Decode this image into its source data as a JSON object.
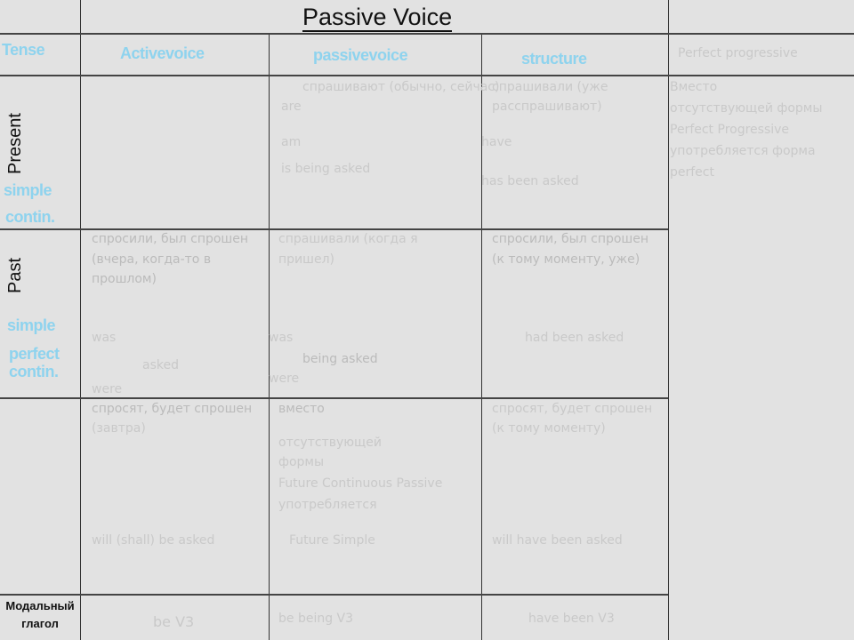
{
  "title": "Passive Voice",
  "header": {
    "tense": "Tense",
    "active": "Activevoice",
    "passive": "passivevoice",
    "structure": "structure",
    "last": "Perfect progressive"
  },
  "rows": {
    "present": {
      "label": "Present",
      "tags": [
        "simple",
        "contin."
      ],
      "passive": [
        "спрашивают (обычно, сейчас)",
        "are",
        "am",
        "is    being asked"
      ],
      "structure": [
        "спрашивали (уже",
        "расспрашивают)",
        "have",
        "has    been asked"
      ],
      "last": [
        "Вместо",
        "отсутствующей формы",
        "Perfect Progressive",
        "употребляется форма",
        "perfect"
      ]
    },
    "past": {
      "label": "Past",
      "tags": [
        "simple",
        "perfect",
        "contin."
      ],
      "active": [
        "спросили, был спрошен",
        "(вчера, когда-то в",
        "прошлом)",
        "was",
        "asked",
        "were"
      ],
      "passive": [
        "спрашивали (когда я",
        "пришел)",
        "was",
        "being asked",
        "were"
      ],
      "structure": [
        "спросили, был спрошен",
        "(к тому моменту, уже)",
        "had been asked"
      ]
    },
    "future": {
      "active": [
        "спросят, будет спрошен",
        "(завтра)",
        "will (shall) be asked"
      ],
      "passive": [
        "вместо",
        "отсутствующей",
        "формы",
        "Future Continuous Passive",
        "употребляется",
        "Future Simple"
      ],
      "structure": [
        "спросят, будет спрошен",
        "(к тому моменту)",
        "will have been asked"
      ]
    },
    "modal": {
      "label": "Модальный глагол",
      "active": "be V3",
      "passive": "be being V3",
      "structure": "have been V3"
    }
  }
}
